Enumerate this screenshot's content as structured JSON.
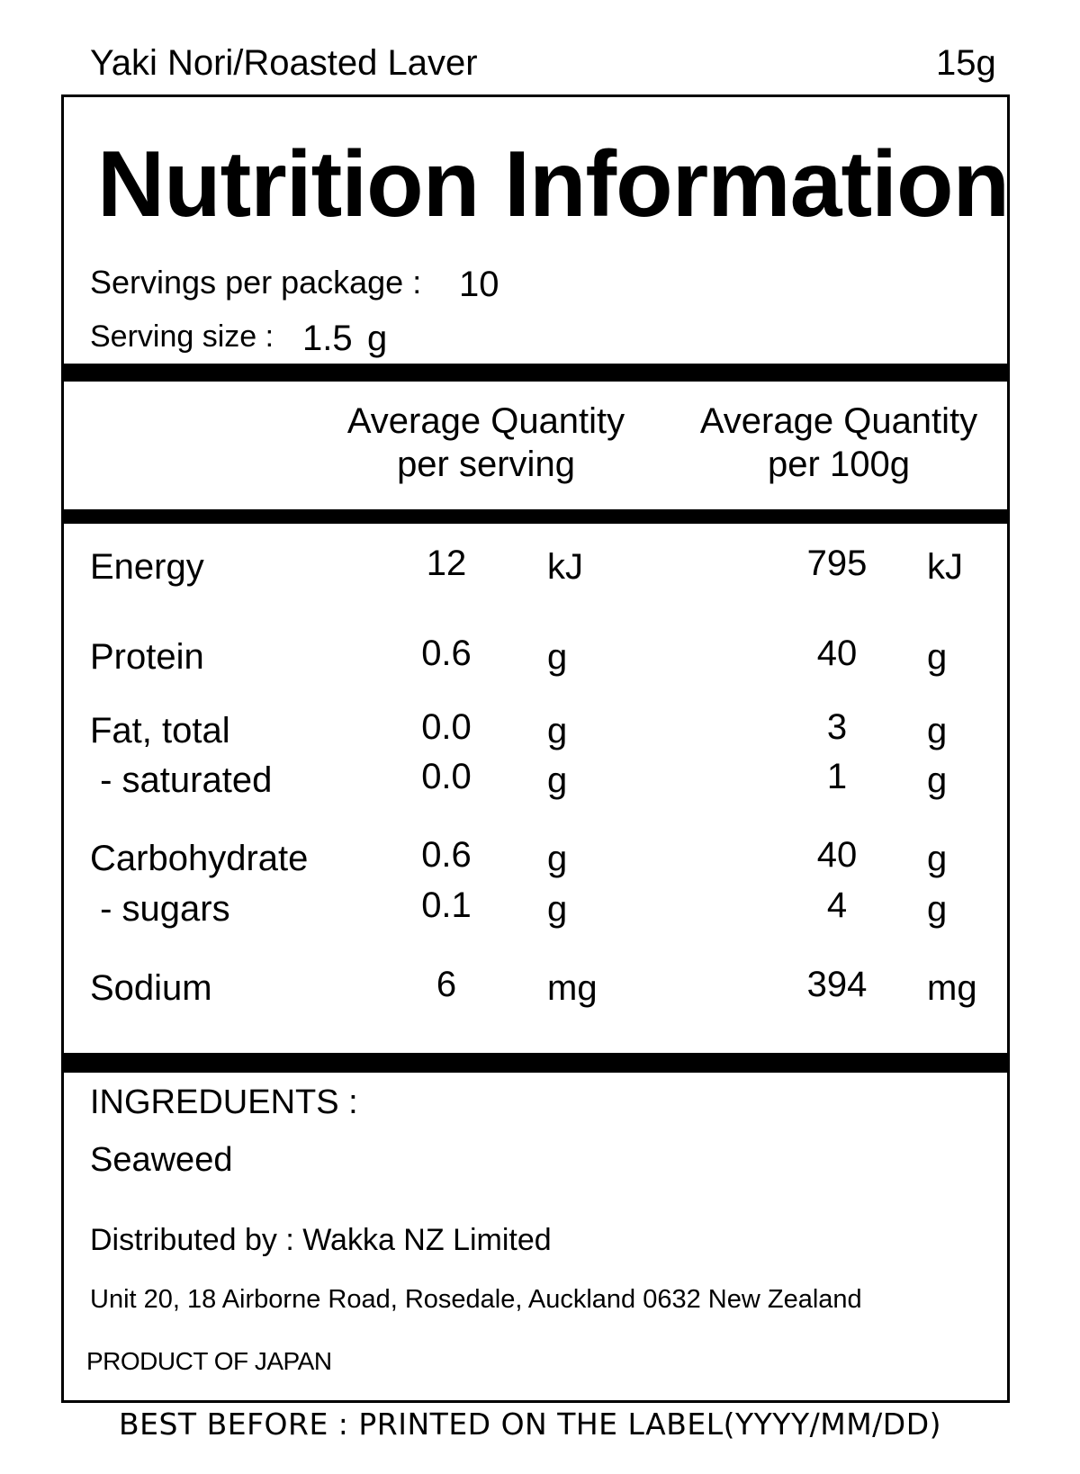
{
  "header": {
    "product_name": "Yaki Nori/Roasted Laver",
    "net_weight": "15g"
  },
  "panel": {
    "title": "Nutrition Information",
    "servings_per_package_label": "Servings per package :",
    "servings_per_package_value": "10",
    "serving_size_label": "Serving size :",
    "serving_size_value": "1.5",
    "serving_size_unit": "g"
  },
  "table": {
    "columns": [
      {
        "line1": "Average Quantity",
        "line2": "per serving"
      },
      {
        "line1": "Average Quantity",
        "line2": "per 100g"
      }
    ],
    "rows": [
      {
        "label": "Energy",
        "per_serving": "12",
        "per_serving_unit": "kJ",
        "per_100g": "795",
        "per_100g_unit": "kJ"
      },
      {
        "label": "Protein",
        "per_serving": "0.6",
        "per_serving_unit": "g",
        "per_100g": "40",
        "per_100g_unit": "g"
      },
      {
        "label": "Fat, total",
        "per_serving": "0.0",
        "per_serving_unit": "g",
        "per_100g": "3",
        "per_100g_unit": "g"
      },
      {
        "label": " - saturated",
        "per_serving": "0.0",
        "per_serving_unit": "g",
        "per_100g": "1",
        "per_100g_unit": "g"
      },
      {
        "label": "Carbohydrate",
        "per_serving": "0.6",
        "per_serving_unit": "g",
        "per_100g": "40",
        "per_100g_unit": "g"
      },
      {
        "label": " - sugars",
        "per_serving": "0.1",
        "per_serving_unit": "g",
        "per_100g": "4",
        "per_100g_unit": "g"
      },
      {
        "label": "Sodium",
        "per_serving": "6",
        "per_serving_unit": "mg",
        "per_100g": "394",
        "per_100g_unit": "mg"
      }
    ]
  },
  "footer": {
    "ingredients_label": "INGREDUENTS :",
    "ingredients_value": "Seaweed",
    "distributed_by": "Distributed by : Wakka NZ Limited",
    "address": "Unit 20, 18 Airborne Road, Rosedale, Auckland 0632 New Zealand",
    "origin": "PRODUCT OF JAPAN"
  },
  "best_before": "BEST BEFORE : PRINTED ON THE LABEL(YYYY/MM/DD)"
}
